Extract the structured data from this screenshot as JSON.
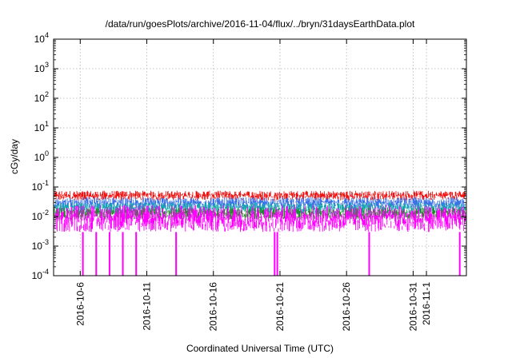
{
  "chart_data": {
    "type": "line",
    "title": "/data/run/goesPlots/archive/2016-11-04/flux/../bryn/31daysEarthData.plot",
    "xlabel": "Coordinated Universal Time (UTC)",
    "ylabel": "cGy/day",
    "y_scale": "log",
    "ylim": [
      0.0001,
      10000
    ],
    "y_ticks": [
      {
        "value": 0.0001,
        "base": "10",
        "exp": "-4"
      },
      {
        "value": 0.001,
        "base": "10",
        "exp": "-3"
      },
      {
        "value": 0.01,
        "base": "10",
        "exp": "-2"
      },
      {
        "value": 0.1,
        "base": "10",
        "exp": "-1"
      },
      {
        "value": 1,
        "base": "10",
        "exp": "0"
      },
      {
        "value": 10,
        "base": "10",
        "exp": "1"
      },
      {
        "value": 100,
        "base": "10",
        "exp": "2"
      },
      {
        "value": 1000,
        "base": "10",
        "exp": "3"
      },
      {
        "value": 10000,
        "base": "10",
        "exp": "4"
      }
    ],
    "x_range": [
      "2016-10-04",
      "2016-11-04"
    ],
    "x_ticks": [
      {
        "date": "2016-10-06",
        "label": "2016-10-6"
      },
      {
        "date": "2016-10-11",
        "label": "2016-10-11"
      },
      {
        "date": "2016-10-16",
        "label": "2016-10-16"
      },
      {
        "date": "2016-10-21",
        "label": "2016-10-21"
      },
      {
        "date": "2016-10-26",
        "label": "2016-10-26"
      },
      {
        "date": "2016-10-31",
        "label": "2016-10-31"
      },
      {
        "date": "2016-11-01",
        "label": "2016-11-1"
      }
    ],
    "grid": true,
    "series": [
      {
        "color": "#ee1111",
        "typical_low": 0.035,
        "typical_high": 0.075
      },
      {
        "color": "#3b72e8",
        "typical_low": 0.018,
        "typical_high": 0.045
      },
      {
        "color": "#11aaaa",
        "typical_low": 0.012,
        "typical_high": 0.03
      },
      {
        "color": "#1f8a1f",
        "typical_low": 0.008,
        "typical_high": 0.02
      },
      {
        "color": "#ff00ff",
        "typical_low": 0.003,
        "typical_high": 0.025
      }
    ],
    "dropouts": [
      {
        "date": "2016-10-06.2",
        "value": 0.0001
      },
      {
        "date": "2016-10-07.2",
        "value": 0.0001
      },
      {
        "date": "2016-10-08.2",
        "value": 0.0001
      },
      {
        "date": "2016-10-09.2",
        "value": 0.0001
      },
      {
        "date": "2016-10-10.2",
        "value": 0.0001
      },
      {
        "date": "2016-10-13.2",
        "value": 0.0001
      },
      {
        "date": "2016-10-20.6",
        "value": 0.0001
      },
      {
        "date": "2016-10-20.8",
        "value": 0.0001
      },
      {
        "date": "2016-10-27.7",
        "value": 0.0001
      },
      {
        "date": "2016-11-03.5",
        "value": 0.0001
      }
    ]
  }
}
